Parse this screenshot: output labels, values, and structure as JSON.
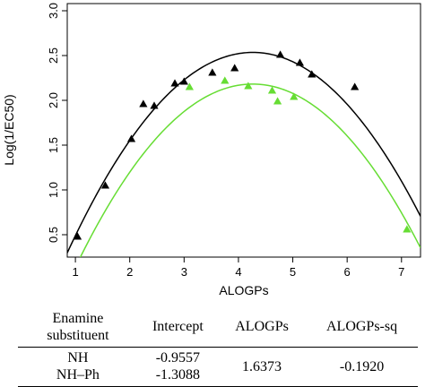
{
  "chart_data": {
    "type": "scatter",
    "title": "",
    "xlabel": "ALOGPs",
    "ylabel": "Log(1/EC50)",
    "xlim": [
      0.85,
      7.35
    ],
    "ylim": [
      0.25,
      3.08
    ],
    "xticks": [
      1,
      2,
      3,
      4,
      5,
      6,
      7
    ],
    "yticks": [
      0.5,
      1.0,
      1.5,
      2.0,
      2.5,
      3.0
    ],
    "xtick_labels": [
      "1",
      "2",
      "3",
      "4",
      "5",
      "6",
      "7"
    ],
    "ytick_labels": [
      "0.5",
      "1.0",
      "1.5",
      "2.0",
      "2.5",
      "3.0"
    ],
    "grid": false,
    "legend": "none",
    "series": [
      {
        "color": "#000000",
        "marker": "triangle",
        "points": [
          [
            1.04,
            0.48
          ],
          [
            1.55,
            1.05
          ],
          [
            2.03,
            1.57
          ],
          [
            2.25,
            1.96
          ],
          [
            2.45,
            1.94
          ],
          [
            2.83,
            2.19
          ],
          [
            3.0,
            2.21
          ],
          [
            3.52,
            2.31
          ],
          [
            3.93,
            2.36
          ],
          [
            4.77,
            2.51
          ],
          [
            5.13,
            2.42
          ],
          [
            5.35,
            2.29
          ],
          [
            6.14,
            2.15
          ]
        ],
        "fit": {
          "intercept": -0.9557,
          "linear": 1.6373,
          "quadratic": -0.192
        }
      },
      {
        "color": "#66dd33",
        "marker": "triangle",
        "points": [
          [
            3.1,
            2.15
          ],
          [
            3.75,
            2.22
          ],
          [
            4.18,
            2.16
          ],
          [
            4.62,
            2.11
          ],
          [
            4.72,
            1.99
          ],
          [
            5.02,
            2.04
          ],
          [
            7.1,
            0.56
          ]
        ],
        "fit": {
          "intercept": -1.3088,
          "linear": 1.6373,
          "quadratic": -0.192
        }
      }
    ]
  },
  "table": {
    "headers": [
      "Enamine substituent",
      "Intercept",
      "ALOGPs",
      "ALOGPs-sq"
    ],
    "rows": [
      {
        "substituents": [
          "NH",
          "NH–Ph"
        ],
        "intercepts": [
          "-0.9557",
          "-1.3088"
        ],
        "alogps": "1.6373",
        "alogps_sq": "-0.1920"
      }
    ]
  }
}
